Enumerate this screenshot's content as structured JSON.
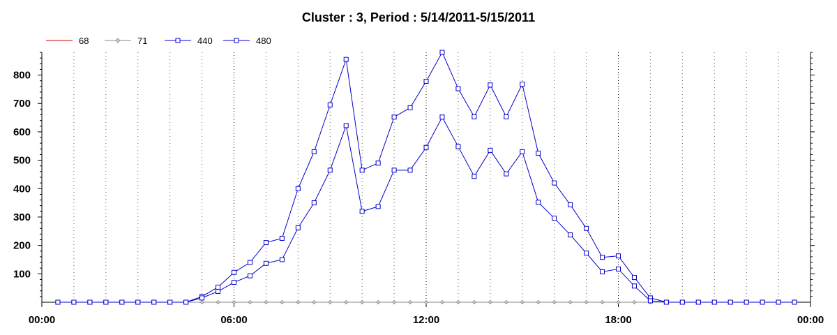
{
  "chart_data": {
    "type": "line",
    "title": "Cluster : 3, Period : 5/14/2011-5/15/2011",
    "xlabel": "",
    "ylabel": "",
    "x_tick_labels": [
      "00:00",
      "06:00",
      "12:00",
      "18:00",
      "00:00"
    ],
    "x_ticks_hours": [
      0,
      6,
      12,
      18,
      24
    ],
    "xlim_hours": [
      0,
      24
    ],
    "ylim": [
      0,
      880
    ],
    "y_ticks": [
      100,
      200,
      300,
      400,
      500,
      600,
      700,
      800
    ],
    "grid": "vertical dotted lines every hour",
    "legend_position": "top-left",
    "x_hours": [
      0.5,
      1.0,
      1.5,
      2.0,
      2.5,
      3.0,
      3.5,
      4.0,
      4.5,
      5.0,
      5.5,
      6.0,
      6.5,
      7.0,
      7.5,
      8.0,
      8.5,
      9.0,
      9.5,
      10.0,
      10.5,
      11.0,
      11.5,
      12.0,
      12.5,
      13.0,
      13.5,
      14.0,
      14.5,
      15.0,
      15.5,
      16.0,
      16.5,
      17.0,
      17.5,
      18.0,
      18.5,
      19.0,
      19.5,
      20.0,
      20.5,
      21.0,
      21.5,
      22.0,
      22.5,
      23.0,
      23.5
    ],
    "series": [
      {
        "name": "68",
        "color": "#cc0000",
        "marker": "none",
        "values": [
          0,
          0,
          0,
          0,
          0,
          0,
          0,
          0,
          0,
          0,
          0,
          0,
          0,
          0,
          0,
          0,
          0,
          0,
          0,
          0,
          0,
          0,
          0,
          0,
          0,
          0,
          0,
          0,
          0,
          0,
          0,
          0,
          0,
          0,
          0,
          0,
          0,
          0,
          0,
          0,
          0,
          0,
          0,
          0,
          0,
          0,
          0
        ]
      },
      {
        "name": "71",
        "color": "#888888",
        "marker": "diamond",
        "values": [
          0,
          0,
          0,
          0,
          0,
          0,
          0,
          0,
          0,
          0,
          0,
          0,
          0,
          0,
          0,
          0,
          0,
          0,
          0,
          0,
          0,
          0,
          0,
          0,
          0,
          0,
          0,
          0,
          0,
          0,
          0,
          0,
          0,
          0,
          0,
          0,
          0,
          0,
          0,
          0,
          0,
          0,
          0,
          0,
          0,
          0,
          0
        ]
      },
      {
        "name": "440",
        "color": "#0000cc",
        "marker": "square",
        "values": [
          0,
          0,
          0,
          0,
          0,
          0,
          0,
          0,
          0,
          20,
          53,
          105,
          140,
          210,
          225,
          400,
          530,
          695,
          855,
          465,
          490,
          652,
          685,
          778,
          880,
          752,
          653,
          765,
          653,
          768,
          525,
          420,
          343,
          260,
          158,
          163,
          87,
          15,
          0,
          0,
          0,
          0,
          0,
          0,
          0,
          0,
          0
        ]
      },
      {
        "name": "480",
        "color": "#0000cc",
        "marker": "square",
        "values": [
          0,
          0,
          0,
          0,
          0,
          0,
          0,
          0,
          0,
          15,
          38,
          70,
          93,
          137,
          150,
          262,
          350,
          465,
          622,
          320,
          337,
          465,
          465,
          545,
          652,
          548,
          443,
          535,
          452,
          530,
          352,
          296,
          237,
          173,
          107,
          117,
          57,
          5,
          0,
          0,
          0,
          0,
          0,
          0,
          0,
          0,
          0
        ]
      }
    ]
  }
}
